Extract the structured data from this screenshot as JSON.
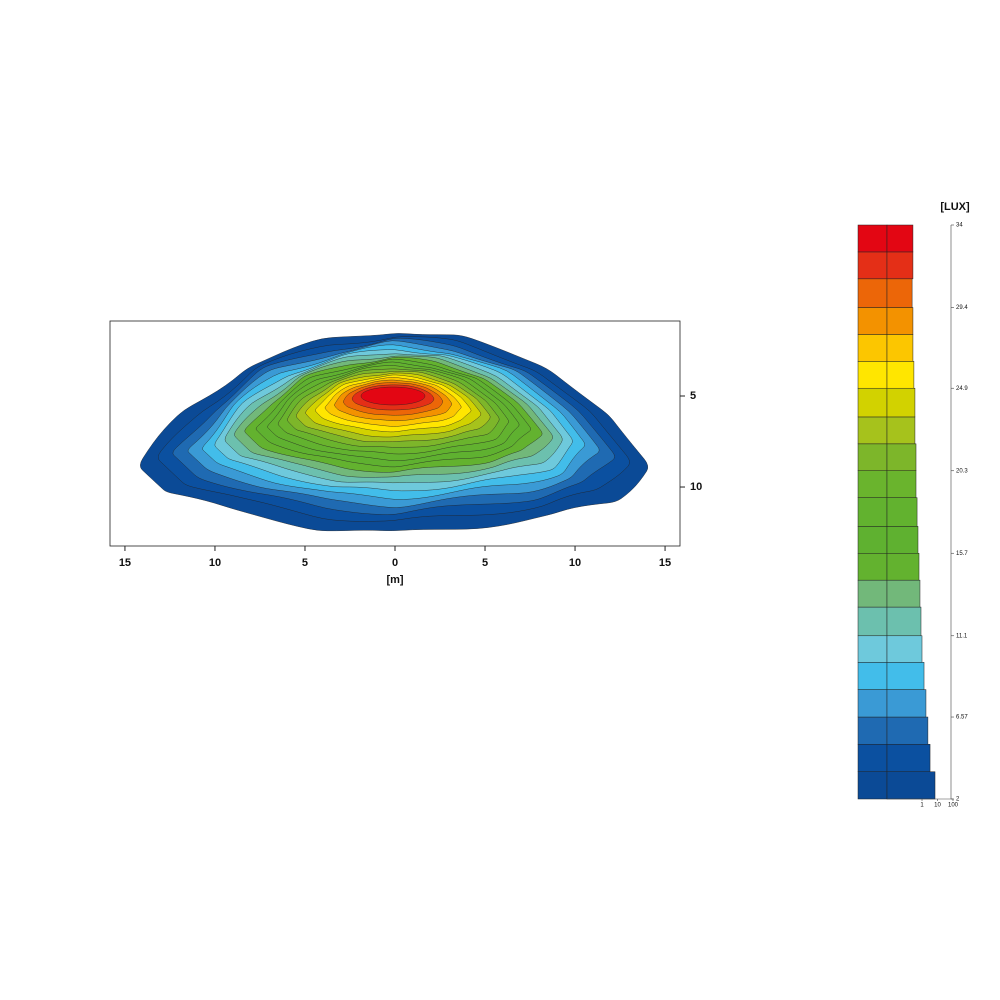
{
  "chart_data": {
    "type": "contour",
    "x_label": "[m]",
    "xlim": [
      -15.83,
      15.83
    ],
    "xticks": [
      {
        "value": -15,
        "label": "15"
      },
      {
        "value": -10,
        "label": "10"
      },
      {
        "value": -5,
        "label": "5"
      },
      0,
      5,
      10,
      15
    ],
    "ylim": [
      0.88,
      13.24
    ],
    "yticks": [
      5,
      10
    ],
    "levels": [
      2,
      3.52,
      5.05,
      6.57,
      8.1,
      9.62,
      11.1,
      12.7,
      14.2,
      15.7,
      17.2,
      18.8,
      20.3,
      21.8,
      23.3,
      24.9,
      26.4,
      27.9,
      29.4,
      31,
      32.5
    ],
    "colors": [
      "#0b4a96",
      "#0b50a0",
      "#1f6ab2",
      "#3a9ad5",
      "#42bdea",
      "#6ec9dc",
      "#6cc0ae",
      "#72b87a",
      "#63b22f",
      "#5fb130",
      "#62b22f",
      "#6ab42d",
      "#7db62a",
      "#a6c21c",
      "#d2d200",
      "#ffe600",
      "#fcc600",
      "#f39200",
      "#ec6608",
      "#e42f17",
      "#e30613"
    ],
    "legend": {
      "title": "[LUX]",
      "ylim": [
        2,
        34
      ],
      "yticks": [
        2,
        6.57,
        11.1,
        15.7,
        20.3,
        24.9,
        29.4,
        34
      ],
      "log_x": true,
      "xlim": [
        0.0055,
        100
      ],
      "xticks": [
        1,
        10,
        100
      ],
      "bar_values": [
        6.9,
        3.3,
        2.4,
        1.8,
        1.35,
        1,
        0.86,
        0.74,
        0.64,
        0.55,
        0.48,
        0.41,
        0.41,
        0.35,
        0.35,
        0.3,
        0.26,
        0.26,
        0.23,
        0.26,
        0.26
      ]
    }
  }
}
